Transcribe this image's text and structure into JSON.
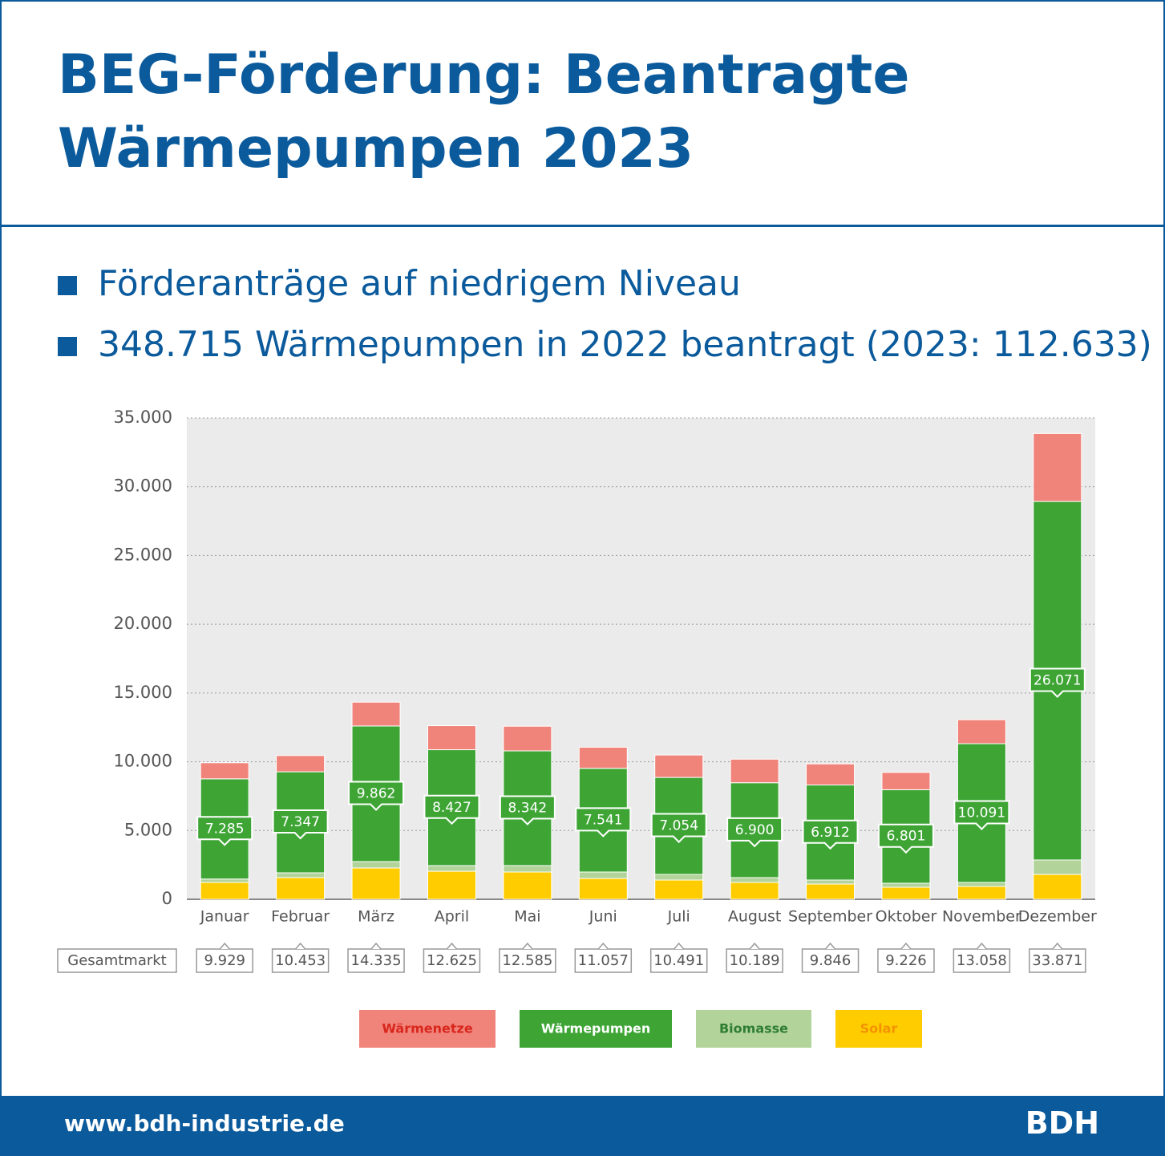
{
  "chart_data": {
    "type": "stacked_bar",
    "title": "BEG-Förderung: Beantragte Wärmepumpen 2023",
    "bullets": [
      "Förderanträge auf niedrigem Niveau",
      "348.715 Wärmepumpen in 2022 beantragt (2023: 112.633)"
    ],
    "categories": [
      "Januar",
      "Februar",
      "März",
      "April",
      "Mai",
      "Juni",
      "Juli",
      "August",
      "September",
      "Oktober",
      "November",
      "Dezember"
    ],
    "series": [
      {
        "name": "Solar",
        "color": "#ffcc00",
        "legend_text_color": "#f39200",
        "values": [
          1225,
          1575,
          2275,
          2040,
          1983,
          1516,
          1400,
          1225,
          1108,
          875,
          933,
          1808
        ]
      },
      {
        "name": "Biomasse",
        "color": "#b2d39a",
        "legend_text_color": "#2e7d32",
        "values": [
          250,
          350,
          465,
          410,
          467,
          467,
          408,
          350,
          292,
          292,
          292,
          1050
        ]
      },
      {
        "name": "Wärmepumpen",
        "color": "#3ea535",
        "legend_text_color": "#ffffff",
        "values": [
          7285,
          7347,
          9862,
          8427,
          8342,
          7541,
          7054,
          6900,
          6912,
          6801,
          10091,
          26071
        ],
        "value_labels": [
          "7.285",
          "7.347",
          "9.862",
          "8.427",
          "8.342",
          "7.541",
          "7.054",
          "6.900",
          "6.912",
          "6.801",
          "10.091",
          "26.071"
        ]
      },
      {
        "name": "Wärmenetze",
        "color": "#f0837a",
        "legend_text_color": "#d9261c",
        "values": [
          1169,
          1181,
          1733,
          1748,
          1793,
          1533,
          1629,
          1714,
          1534,
          1258,
          1742,
          4942
        ]
      }
    ],
    "totals": {
      "name": "Gesamtmarkt",
      "values": [
        9929,
        10453,
        14335,
        12625,
        12585,
        11057,
        10491,
        10189,
        9846,
        9226,
        13058,
        33871
      ],
      "value_labels": [
        "9.929",
        "10.453",
        "14.335",
        "12.625",
        "12.585",
        "11.057",
        "10.491",
        "10.189",
        "9.846",
        "9.226",
        "13.058",
        "33.871"
      ]
    },
    "ylim": [
      0,
      35000
    ],
    "yticks": [
      0,
      {
        "value": 5000,
        "label": "5.000"
      },
      {
        "value": 10000,
        "label": "10.000"
      },
      {
        "value": 15000,
        "label": "15.000"
      },
      {
        "value": 20000,
        "label": "20.000"
      },
      {
        "value": 25000,
        "label": "25.000"
      },
      {
        "value": 30000,
        "label": "30.000"
      },
      {
        "value": 35000,
        "label": "35.000"
      }
    ],
    "grid": true
  },
  "footer": {
    "url": "www.bdh-industrie.de",
    "logo": "BDH"
  }
}
